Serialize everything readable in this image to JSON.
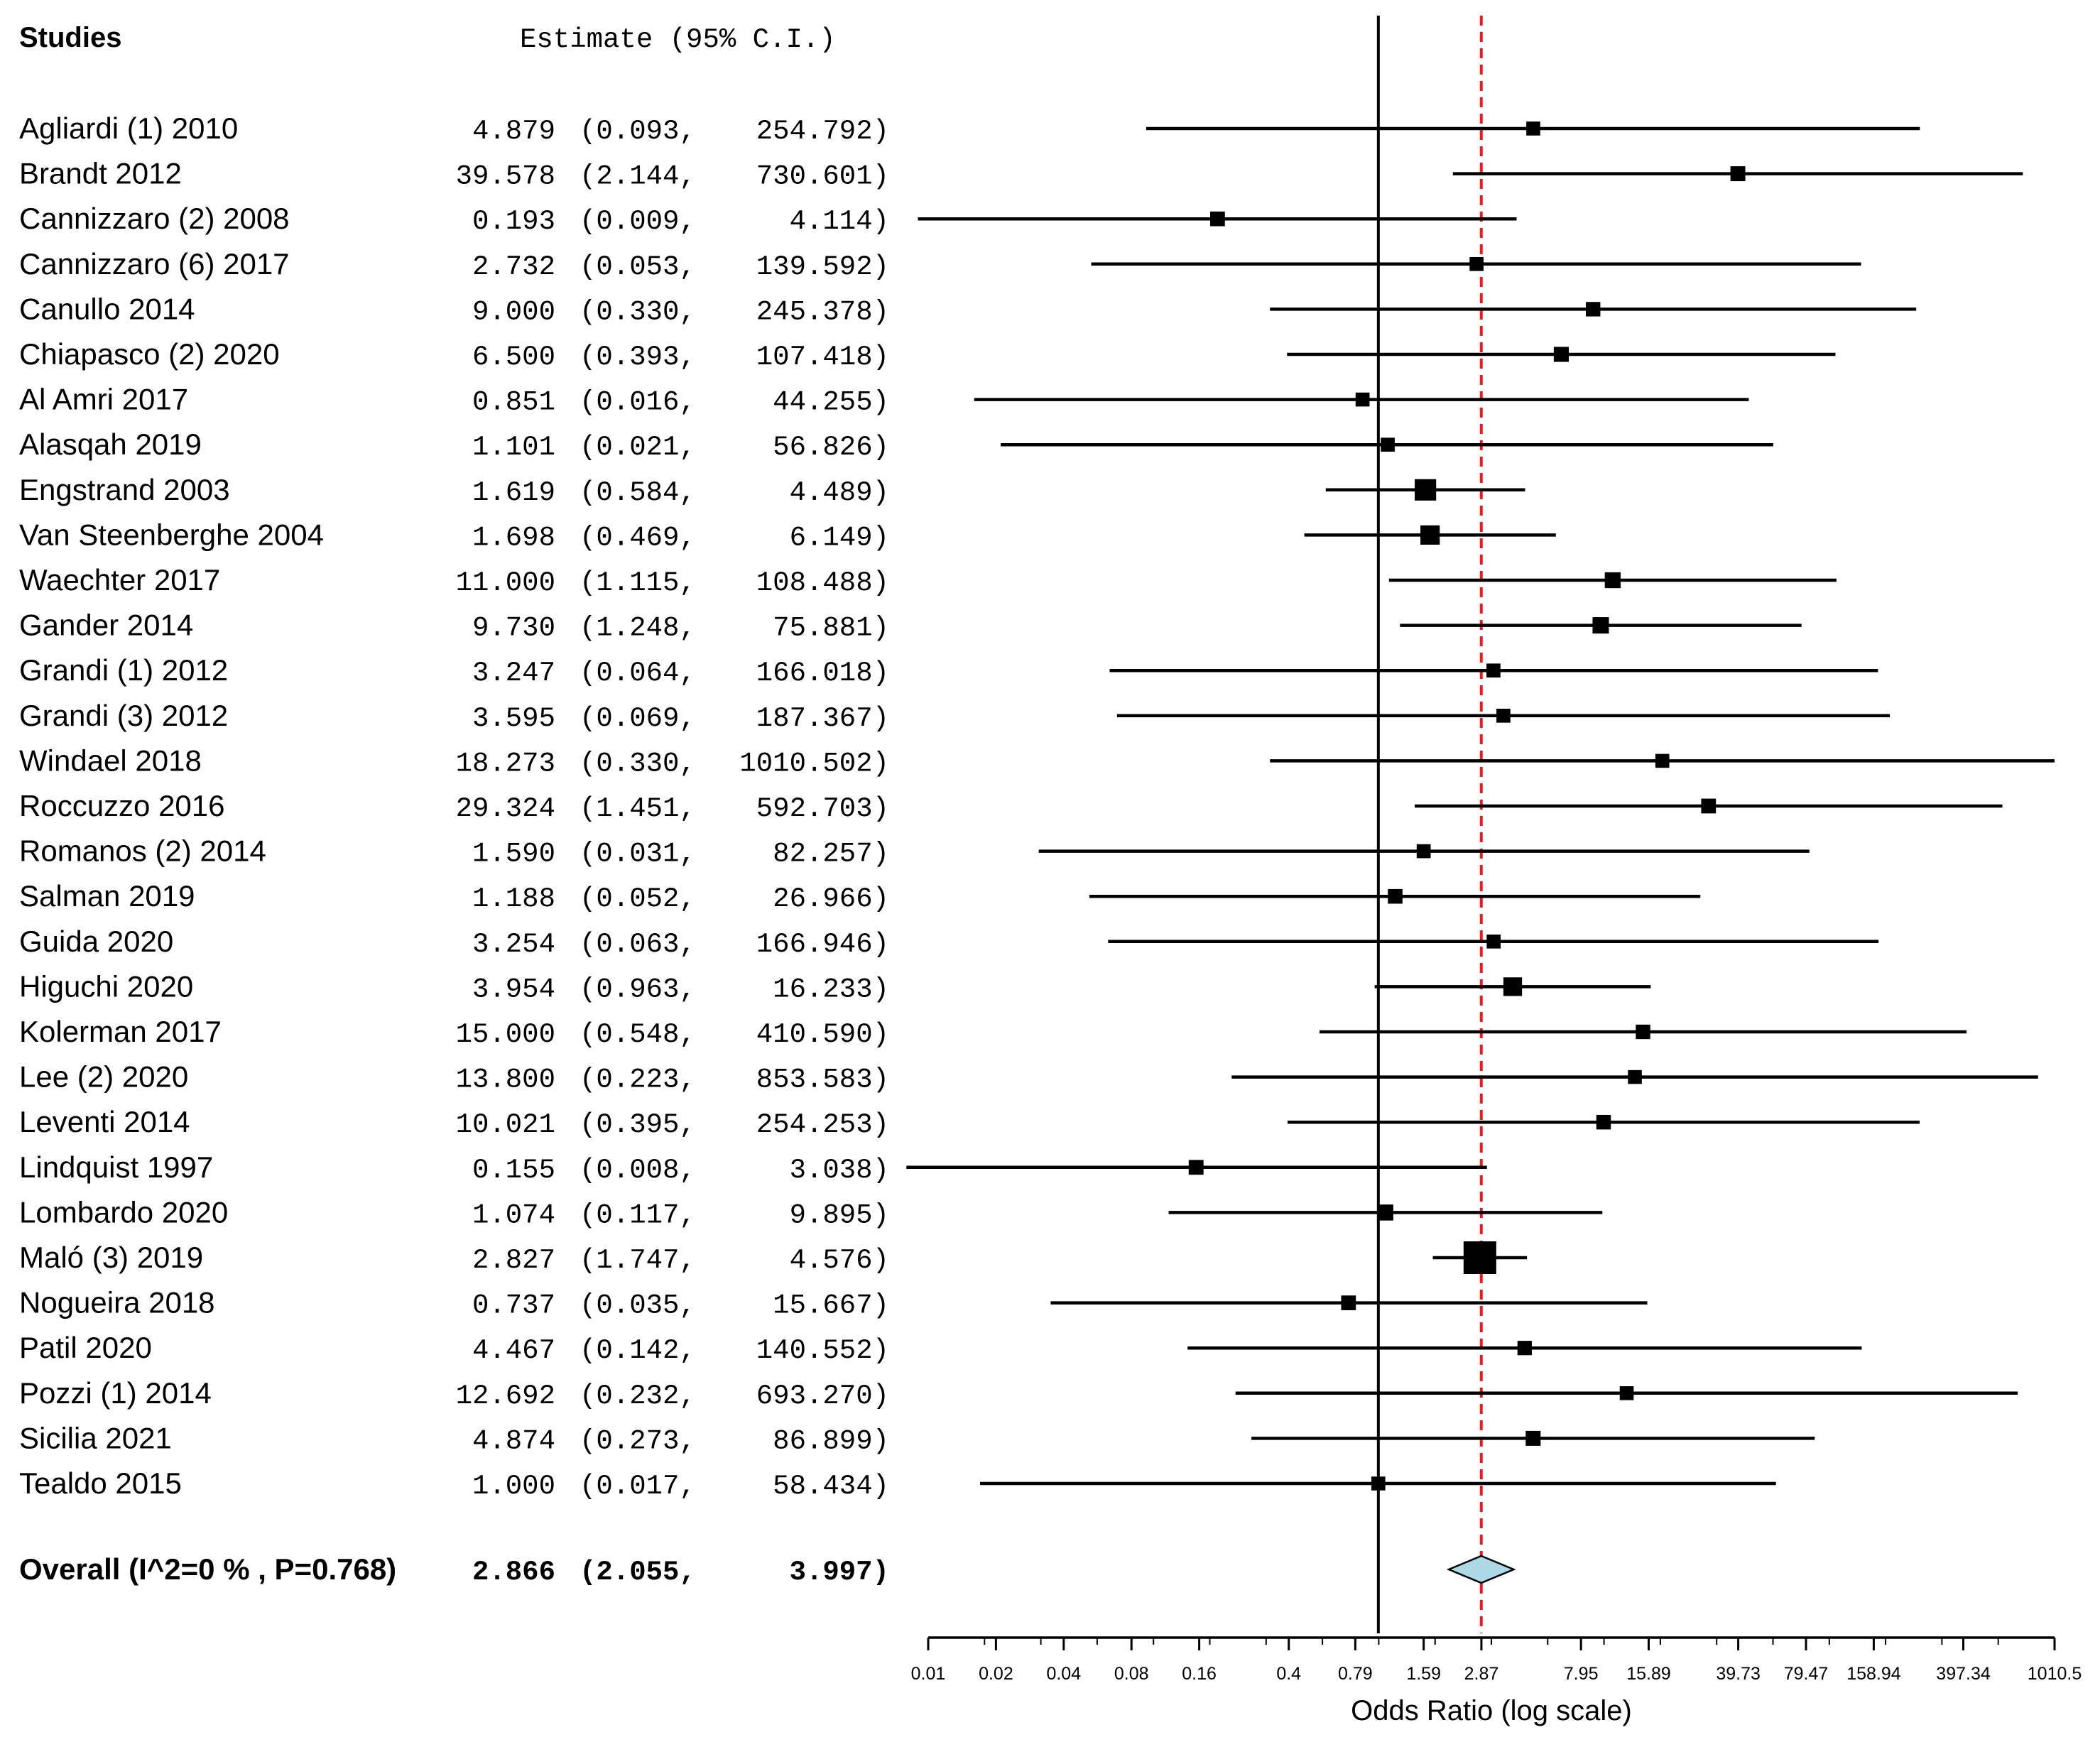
{
  "chart_data": {
    "type": "forest",
    "headers": {
      "studies": "Studies",
      "estimate": "Estimate (95% C.I.)"
    },
    "xlabel": "Odds Ratio (log scale)",
    "xscale": "log",
    "xlim": [
      0.01,
      1010.5
    ],
    "xticks": [
      "0.01",
      "0.02",
      "0.04",
      "0.08",
      "0.16",
      "0.4",
      "0.79",
      "1.59",
      "2.87",
      "7.95",
      "15.89",
      "39.73",
      "79.47",
      "158.94",
      "397.34",
      "1010.5"
    ],
    "null_line": 1,
    "pooled_line": 2.866,
    "studies": [
      {
        "name": "Agliardi (1) 2010",
        "or": 4.879,
        "lo": 0.093,
        "hi": 254.792,
        "est": "4.879",
        "ci_lo": "(0.093,",
        "ci_hi": "254.792)"
      },
      {
        "name": "Brandt 2012",
        "or": 39.578,
        "lo": 2.144,
        "hi": 730.601,
        "est": "39.578",
        "ci_lo": "(2.144,",
        "ci_hi": "730.601)"
      },
      {
        "name": "Cannizzaro (2) 2008",
        "or": 0.193,
        "lo": 0.009,
        "hi": 4.114,
        "est": "0.193",
        "ci_lo": "(0.009,",
        "ci_hi": "4.114)"
      },
      {
        "name": "Cannizzaro (6) 2017",
        "or": 2.732,
        "lo": 0.053,
        "hi": 139.592,
        "est": "2.732",
        "ci_lo": "(0.053,",
        "ci_hi": "139.592)"
      },
      {
        "name": "Canullo 2014",
        "or": 9.0,
        "lo": 0.33,
        "hi": 245.378,
        "est": "9.000",
        "ci_lo": "(0.330,",
        "ci_hi": "245.378)"
      },
      {
        "name": "Chiapasco (2) 2020",
        "or": 6.5,
        "lo": 0.393,
        "hi": 107.418,
        "est": "6.500",
        "ci_lo": "(0.393,",
        "ci_hi": "107.418)"
      },
      {
        "name": "Al Amri 2017",
        "or": 0.851,
        "lo": 0.016,
        "hi": 44.255,
        "est": "0.851",
        "ci_lo": "(0.016,",
        "ci_hi": "44.255)"
      },
      {
        "name": "Alasqah 2019",
        "or": 1.101,
        "lo": 0.021,
        "hi": 56.826,
        "est": "1.101",
        "ci_lo": "(0.021,",
        "ci_hi": "56.826)"
      },
      {
        "name": "Engstrand 2003",
        "or": 1.619,
        "lo": 0.584,
        "hi": 4.489,
        "est": "1.619",
        "ci_lo": "(0.584,",
        "ci_hi": "4.489)"
      },
      {
        "name": "Van Steenberghe 2004",
        "or": 1.698,
        "lo": 0.469,
        "hi": 6.149,
        "est": "1.698",
        "ci_lo": "(0.469,",
        "ci_hi": "6.149)"
      },
      {
        "name": "Waechter 2017",
        "or": 11.0,
        "lo": 1.115,
        "hi": 108.488,
        "est": "11.000",
        "ci_lo": "(1.115,",
        "ci_hi": "108.488)"
      },
      {
        "name": "Gander 2014",
        "or": 9.73,
        "lo": 1.248,
        "hi": 75.881,
        "est": "9.730",
        "ci_lo": "(1.248,",
        "ci_hi": "75.881)"
      },
      {
        "name": "Grandi (1) 2012",
        "or": 3.247,
        "lo": 0.064,
        "hi": 166.018,
        "est": "3.247",
        "ci_lo": "(0.064,",
        "ci_hi": "166.018)"
      },
      {
        "name": "Grandi (3) 2012",
        "or": 3.595,
        "lo": 0.069,
        "hi": 187.367,
        "est": "3.595",
        "ci_lo": "(0.069,",
        "ci_hi": "187.367)"
      },
      {
        "name": "Windael 2018",
        "or": 18.273,
        "lo": 0.33,
        "hi": 1010.502,
        "est": "18.273",
        "ci_lo": "(0.330,",
        "ci_hi": "1010.502)"
      },
      {
        "name": "Roccuzzo 2016",
        "or": 29.324,
        "lo": 1.451,
        "hi": 592.703,
        "est": "29.324",
        "ci_lo": "(1.451,",
        "ci_hi": "592.703)"
      },
      {
        "name": "Romanos (2) 2014",
        "or": 1.59,
        "lo": 0.031,
        "hi": 82.257,
        "est": "1.590",
        "ci_lo": "(0.031,",
        "ci_hi": "82.257)"
      },
      {
        "name": "Salman 2019",
        "or": 1.188,
        "lo": 0.052,
        "hi": 26.966,
        "est": "1.188",
        "ci_lo": "(0.052,",
        "ci_hi": "26.966)"
      },
      {
        "name": "Guida 2020",
        "or": 3.254,
        "lo": 0.063,
        "hi": 166.946,
        "est": "3.254",
        "ci_lo": "(0.063,",
        "ci_hi": "166.946)"
      },
      {
        "name": "Higuchi 2020",
        "or": 3.954,
        "lo": 0.963,
        "hi": 16.233,
        "est": "3.954",
        "ci_lo": "(0.963,",
        "ci_hi": "16.233)"
      },
      {
        "name": "Kolerman 2017",
        "or": 15.0,
        "lo": 0.548,
        "hi": 410.59,
        "est": "15.000",
        "ci_lo": "(0.548,",
        "ci_hi": "410.590)"
      },
      {
        "name": "Lee (2) 2020",
        "or": 13.8,
        "lo": 0.223,
        "hi": 853.583,
        "est": "13.800",
        "ci_lo": "(0.223,",
        "ci_hi": "853.583)"
      },
      {
        "name": "Leventi 2014",
        "or": 10.021,
        "lo": 0.395,
        "hi": 254.253,
        "est": "10.021",
        "ci_lo": "(0.395,",
        "ci_hi": "254.253)"
      },
      {
        "name": "Lindquist 1997",
        "or": 0.155,
        "lo": 0.008,
        "hi": 3.038,
        "est": "0.155",
        "ci_lo": "(0.008,",
        "ci_hi": "3.038)"
      },
      {
        "name": "Lombardo 2020",
        "or": 1.074,
        "lo": 0.117,
        "hi": 9.895,
        "est": "1.074",
        "ci_lo": "(0.117,",
        "ci_hi": "9.895)"
      },
      {
        "name": "Maló (3) 2019",
        "or": 2.827,
        "lo": 1.747,
        "hi": 4.576,
        "est": "2.827",
        "ci_lo": "(1.747,",
        "ci_hi": "4.576)"
      },
      {
        "name": "Nogueira 2018",
        "or": 0.737,
        "lo": 0.035,
        "hi": 15.667,
        "est": "0.737",
        "ci_lo": "(0.035,",
        "ci_hi": "15.667)"
      },
      {
        "name": "Patil 2020",
        "or": 4.467,
        "lo": 0.142,
        "hi": 140.552,
        "est": "4.467",
        "ci_lo": "(0.142,",
        "ci_hi": "140.552)"
      },
      {
        "name": "Pozzi (1) 2014",
        "or": 12.692,
        "lo": 0.232,
        "hi": 693.27,
        "est": "12.692",
        "ci_lo": "(0.232,",
        "ci_hi": "693.270)"
      },
      {
        "name": "Sicilia 2021",
        "or": 4.874,
        "lo": 0.273,
        "hi": 86.899,
        "est": "4.874",
        "ci_lo": "(0.273,",
        "ci_hi": "86.899)"
      },
      {
        "name": "Tealdo 2015",
        "or": 1.0,
        "lo": 0.017,
        "hi": 58.434,
        "est": "1.000",
        "ci_lo": "(0.017,",
        "ci_hi": "58.434)"
      }
    ],
    "overall": {
      "name": "Overall (I^2=0 % , P=0.768)",
      "or": 2.866,
      "lo": 2.055,
      "hi": 3.997,
      "est": "2.866",
      "ci_lo": "(2.055,",
      "ci_hi": "3.997)"
    },
    "colors": {
      "line": "#000000",
      "pooled_line": "#e41a1c",
      "diamond_fill": "#add8e6",
      "marker": "#000000"
    }
  }
}
